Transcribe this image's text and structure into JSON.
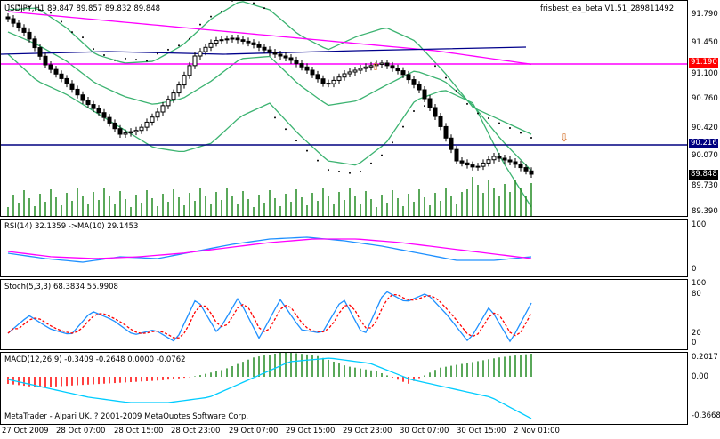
{
  "main": {
    "symbol_info": "USDJPY,H1  89.847 89.857 89.832 89.848",
    "ea_label": "frisbest_ea_beta V1.51_289811492",
    "price_ticks": [
      "91.790",
      "91.450",
      "91.100",
      "90.760",
      "90.420",
      "90.070",
      "89.730",
      "89.390"
    ],
    "level_red": "91.190",
    "level_blue": "90.216",
    "current_price": "89.848",
    "copyright": "MetaTrader - Alpari UK, ? 2001-2009 MetaQuotes Software Corp."
  },
  "rsi": {
    "label": "RSI(14) 32.1359  ->MA(10) 29.1453",
    "ticks": [
      "100",
      "0"
    ]
  },
  "stoch": {
    "label": "Stoch(5,3,3) 68.3834 55.9908",
    "ticks": [
      "100",
      "80",
      "20",
      "0"
    ]
  },
  "macd": {
    "label": "MACD(12,26,9) -0.3409 -0.2648 0.0000 -0.0762",
    "ticks": [
      "0.2017",
      "0.00",
      "-0.3668"
    ]
  },
  "time_axis": [
    "27 Oct 2009",
    "28 Oct 07:00",
    "28 Oct 15:00",
    "28 Oct 23:00",
    "29 Oct 07:00",
    "29 Oct 15:00",
    "29 Oct 23:00",
    "30 Oct 07:00",
    "30 Oct 15:00",
    "2 Nov 01:00"
  ],
  "colors": {
    "bollinger": "#3cb371",
    "ma_slow": "#ff00ff",
    "ma_blue": "#00008b",
    "level_red": "#ff00ff",
    "level_blue": "#000080",
    "sar": "#000000",
    "volume": "#228b22",
    "rsi_main": "#1e90ff",
    "rsi_ma": "#ff00ff",
    "stoch_main": "#1e90ff",
    "stoch_signal": "#ff0000",
    "macd_hist_pos": "#228b22",
    "macd_hist_neg": "#ff0000",
    "macd_signal": "#00ccff"
  }
}
